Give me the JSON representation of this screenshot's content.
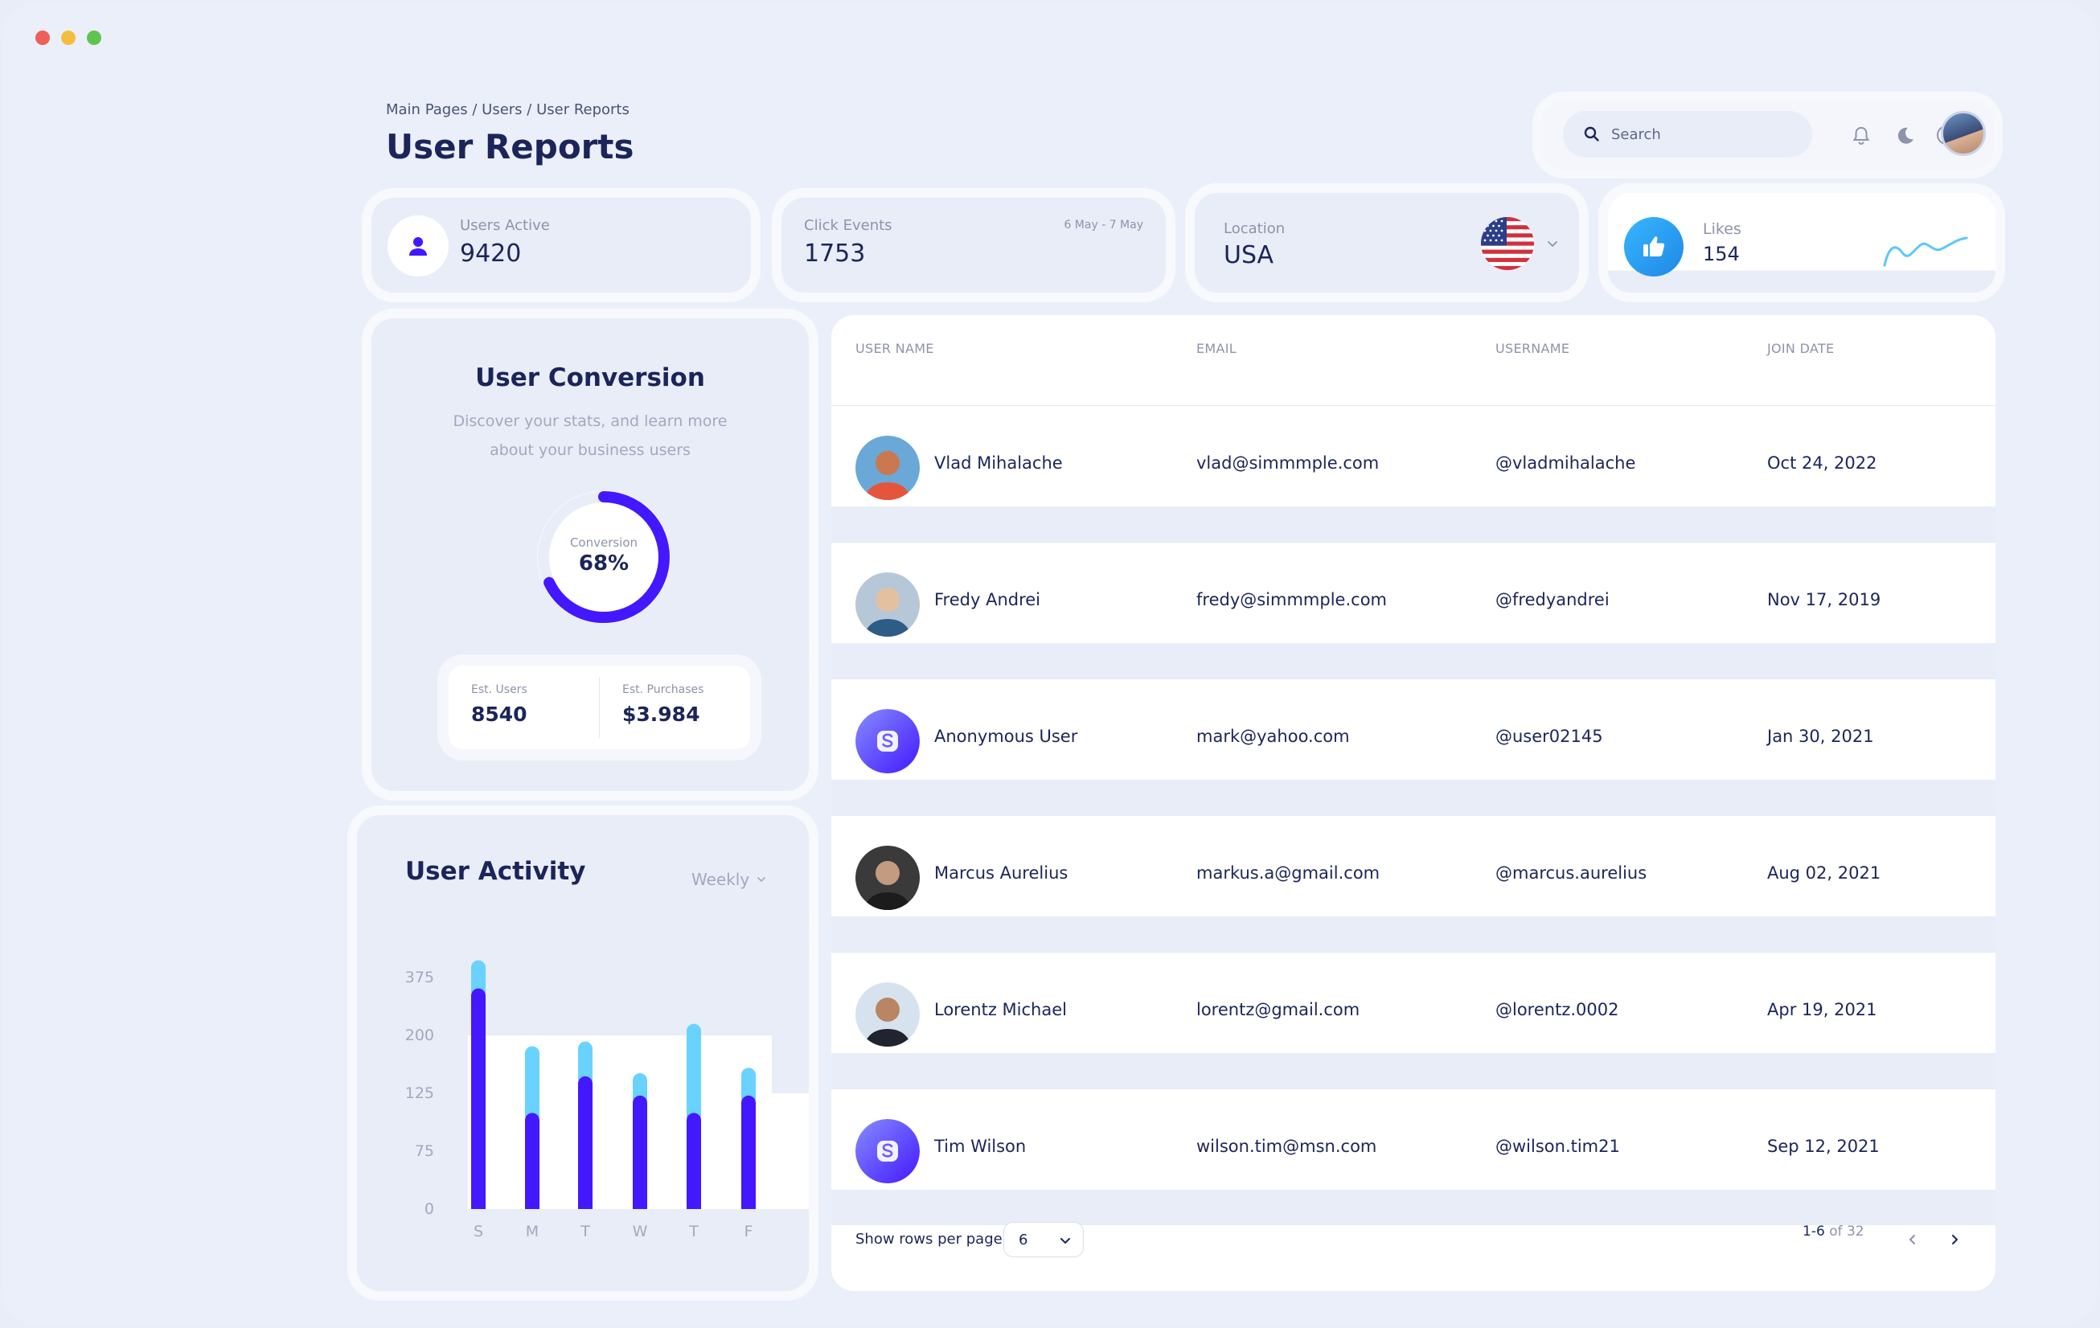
{
  "breadcrumb": "Main Pages / Users / User Reports",
  "page_title": "User Reports",
  "search": {
    "placeholder": "Search"
  },
  "stats": {
    "users_active": {
      "label": "Users Active",
      "value": "9420"
    },
    "click_events": {
      "label": "Click Events",
      "value": "1753",
      "range": "6 May - 7 May"
    },
    "location": {
      "label": "Location",
      "value": "USA"
    },
    "likes": {
      "label": "Likes",
      "value": "154"
    }
  },
  "conversion": {
    "title": "User Conversion",
    "description": "Discover your stats, and learn more about your business users",
    "donut_label": "Conversion",
    "donut_value": "68%",
    "percent": 68,
    "est_users_label": "Est. Users",
    "est_users_value": "8540",
    "est_purchases_label": "Est. Purchases",
    "est_purchases_value": "$3.984"
  },
  "activity": {
    "title": "User Activity",
    "filter": "Weekly"
  },
  "chart_data": {
    "type": "bar",
    "title": "User Activity",
    "categories": [
      "S",
      "M",
      "T",
      "W",
      "T",
      "F"
    ],
    "y_ticks": [
      "375",
      "200",
      "125",
      "75",
      "0"
    ],
    "y_tick_values": [
      375,
      200,
      125,
      75,
      0
    ],
    "series": [
      {
        "values": [
          342,
          108,
          147,
          123,
          108,
          123
        ]
      },
      {
        "values": [
          85,
          78,
          45,
          28,
          127,
          35
        ]
      }
    ],
    "colors": [
      "#4318ff",
      "#6ad2ff"
    ],
    "stacked": true
  },
  "table": {
    "headers": [
      "USER NAME",
      "EMAIL",
      "USERNAME",
      "JOIN DATE"
    ],
    "rows": [
      {
        "name": "Vlad Mihalache",
        "email": "vlad@simmmple.com",
        "username": "@vladmihalache",
        "date": "Oct 24, 2022",
        "avatar": "photo"
      },
      {
        "name": "Fredy Andrei",
        "email": "fredy@simmmple.com",
        "username": "@fredyandrei",
        "date": "Nov 17, 2019",
        "avatar": "photo"
      },
      {
        "name": "Anonymous User",
        "email": "mark@yahoo.com",
        "username": "@user02145",
        "date": "Jan 30, 2021",
        "avatar": "logo"
      },
      {
        "name": "Marcus Aurelius",
        "email": "markus.a@gmail.com",
        "username": "@marcus.aurelius",
        "date": "Aug 02, 2021",
        "avatar": "photo"
      },
      {
        "name": "Lorentz Michael",
        "email": "lorentz@gmail.com",
        "username": "@lorentz.0002",
        "date": "Apr 19, 2021",
        "avatar": "photo"
      },
      {
        "name": "Tim Wilson",
        "email": "wilson.tim@msn.com",
        "username": "@wilson.tim21",
        "date": "Sep 12, 2021",
        "avatar": "logo"
      }
    ],
    "rows_per_page_label": "Show rows per page",
    "rows_per_page": "6",
    "page_range": "1-6",
    "page_of": "of 32"
  }
}
